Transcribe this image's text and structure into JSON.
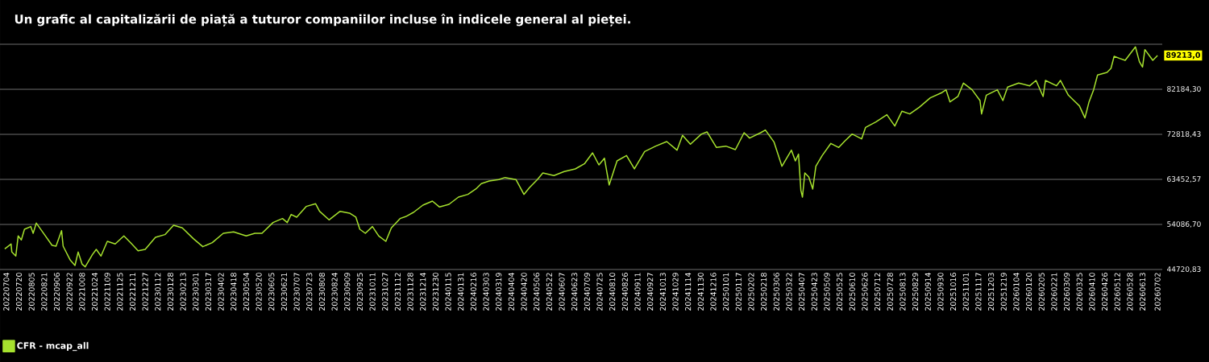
{
  "chart_data": {
    "type": "line",
    "title": "Un grafic al capitalizării de piață a tuturor companiilor incluse în indicele general al pieței.",
    "xlim": [
      "2022-06-26",
      "2026-07-08"
    ],
    "xticks": [
      {
        "value": "2022-07-04",
        "label": "20220704"
      },
      {
        "value": "2022-07-20",
        "label": "20220720"
      },
      {
        "value": "2022-08-05",
        "label": "20220805"
      },
      {
        "value": "2022-08-21",
        "label": "20220821"
      },
      {
        "value": "2022-09-06",
        "label": "20220906"
      },
      {
        "value": "2022-09-22",
        "label": "20220922"
      },
      {
        "value": "2022-10-08",
        "label": "20221008"
      },
      {
        "value": "2022-10-24",
        "label": "20221024"
      },
      {
        "value": "2022-11-09",
        "label": "20221109"
      },
      {
        "value": "2022-11-25",
        "label": "20221125"
      },
      {
        "value": "2022-12-11",
        "label": "20221211"
      },
      {
        "value": "2022-12-27",
        "label": "20221227"
      },
      {
        "value": "2023-01-12",
        "label": "20230112"
      },
      {
        "value": "2023-01-28",
        "label": "20230128"
      },
      {
        "value": "2023-02-13",
        "label": "20230213"
      },
      {
        "value": "2023-03-01",
        "label": "20230301"
      },
      {
        "value": "2023-03-17",
        "label": "20230317"
      },
      {
        "value": "2023-04-02",
        "label": "20230402"
      },
      {
        "value": "2023-04-18",
        "label": "20230418"
      },
      {
        "value": "2023-05-04",
        "label": "20230504"
      },
      {
        "value": "2023-05-20",
        "label": "20230520"
      },
      {
        "value": "2023-06-05",
        "label": "20230605"
      },
      {
        "value": "2023-06-21",
        "label": "20230621"
      },
      {
        "value": "2023-07-07",
        "label": "20230707"
      },
      {
        "value": "2023-07-23",
        "label": "20230723"
      },
      {
        "value": "2023-08-08",
        "label": "20230808"
      },
      {
        "value": "2023-08-24",
        "label": "20230824"
      },
      {
        "value": "2023-09-09",
        "label": "20230909"
      },
      {
        "value": "2023-09-25",
        "label": "20230925"
      },
      {
        "value": "2023-10-11",
        "label": "20231011"
      },
      {
        "value": "2023-10-27",
        "label": "20231027"
      },
      {
        "value": "2023-11-12",
        "label": "20231112"
      },
      {
        "value": "2023-11-28",
        "label": "20231128"
      },
      {
        "value": "2023-12-14",
        "label": "20231214"
      },
      {
        "value": "2023-12-30",
        "label": "20231230"
      },
      {
        "value": "2024-01-15",
        "label": "20240115"
      },
      {
        "value": "2024-01-31",
        "label": "20240131"
      },
      {
        "value": "2024-02-16",
        "label": "20240216"
      },
      {
        "value": "2024-03-03",
        "label": "20240303"
      },
      {
        "value": "2024-03-19",
        "label": "20240319"
      },
      {
        "value": "2024-04-04",
        "label": "20240404"
      },
      {
        "value": "2024-04-20",
        "label": "20240420"
      },
      {
        "value": "2024-05-06",
        "label": "20240506"
      },
      {
        "value": "2024-05-22",
        "label": "20240522"
      },
      {
        "value": "2024-06-07",
        "label": "20240607"
      },
      {
        "value": "2024-06-23",
        "label": "20240623"
      },
      {
        "value": "2024-07-09",
        "label": "20240709"
      },
      {
        "value": "2024-07-25",
        "label": "20240725"
      },
      {
        "value": "2024-08-10",
        "label": "20240810"
      },
      {
        "value": "2024-08-26",
        "label": "20240826"
      },
      {
        "value": "2024-09-11",
        "label": "20240911"
      },
      {
        "value": "2024-09-27",
        "label": "20240927"
      },
      {
        "value": "2024-10-13",
        "label": "20241013"
      },
      {
        "value": "2024-10-29",
        "label": "20241029"
      },
      {
        "value": "2024-11-14",
        "label": "20241114"
      },
      {
        "value": "2024-11-30",
        "label": "20241130"
      },
      {
        "value": "2024-12-16",
        "label": "20241216"
      },
      {
        "value": "2025-01-01",
        "label": "20250101"
      },
      {
        "value": "2025-01-17",
        "label": "20250117"
      },
      {
        "value": "2025-02-02",
        "label": "20250202"
      },
      {
        "value": "2025-02-18",
        "label": "20250218"
      },
      {
        "value": "2025-03-06",
        "label": "20250306"
      },
      {
        "value": "2025-03-22",
        "label": "20250322"
      },
      {
        "value": "2025-04-07",
        "label": "20250407"
      },
      {
        "value": "2025-04-23",
        "label": "20250423"
      },
      {
        "value": "2025-05-09",
        "label": "20250509"
      },
      {
        "value": "2025-05-25",
        "label": "20250525"
      },
      {
        "value": "2025-06-10",
        "label": "20250610"
      },
      {
        "value": "2025-06-26",
        "label": "20250626"
      },
      {
        "value": "2025-07-12",
        "label": "20250712"
      },
      {
        "value": "2025-07-28",
        "label": "20250728"
      },
      {
        "value": "2025-08-13",
        "label": "20250813"
      },
      {
        "value": "2025-08-29",
        "label": "20250829"
      },
      {
        "value": "2025-09-14",
        "label": "20250914"
      },
      {
        "value": "2025-09-30",
        "label": "20250930"
      },
      {
        "value": "2025-10-16",
        "label": "20251016"
      },
      {
        "value": "2025-11-01",
        "label": "20251101"
      },
      {
        "value": "2025-11-17",
        "label": "20251117"
      },
      {
        "value": "2025-12-03",
        "label": "20251203"
      },
      {
        "value": "2025-12-19",
        "label": "20251219"
      },
      {
        "value": "2026-01-04",
        "label": "20260104"
      },
      {
        "value": "2026-01-20",
        "label": "20260120"
      },
      {
        "value": "2026-02-05",
        "label": "20260205"
      },
      {
        "value": "2026-02-21",
        "label": "20260221"
      },
      {
        "value": "2026-03-09",
        "label": "20260309"
      },
      {
        "value": "2026-03-25",
        "label": "20260325"
      },
      {
        "value": "2026-04-10",
        "label": "20260410"
      },
      {
        "value": "2026-04-26",
        "label": "20260426"
      },
      {
        "value": "2026-05-12",
        "label": "20260512"
      },
      {
        "value": "2026-05-28",
        "label": "20260528"
      },
      {
        "value": "2026-06-13",
        "label": "20260613"
      },
      {
        "value": "2026-07-02",
        "label": "20260702"
      }
    ],
    "ylim": [
      44720.83,
      91550.17
    ],
    "yticks": [
      {
        "value": 44720.83,
        "label": "44720,83"
      },
      {
        "value": 54086.7,
        "label": "54086,70"
      },
      {
        "value": 63452.57,
        "label": "63452,57"
      },
      {
        "value": 72818.43,
        "label": "72818,43"
      },
      {
        "value": 82184.3,
        "label": "82184,30"
      },
      {
        "value": 91550.17,
        "label": null
      }
    ],
    "grid": "y",
    "legend": "bottom left",
    "annotations": [
      {
        "text": "89213,0",
        "x": "2026-07-02",
        "y": 89213
      }
    ],
    "x": [
      "2022-07-02",
      "2022-07-10",
      "2022-07-11",
      "2022-07-16",
      "2022-07-19",
      "2022-07-23",
      "2022-07-27",
      "2022-08-04",
      "2022-08-07",
      "2022-08-11",
      "2022-08-19",
      "2022-08-31",
      "2022-09-05",
      "2022-09-12",
      "2022-09-14",
      "2022-09-23",
      "2022-09-29",
      "2022-10-03",
      "2022-10-08",
      "2022-10-12",
      "2022-10-21",
      "2022-10-26",
      "2022-11-01",
      "2022-11-09",
      "2022-11-19",
      "2022-11-30",
      "2022-12-10",
      "2022-12-18",
      "2022-12-27",
      "2023-01-09",
      "2023-01-21",
      "2023-02-01",
      "2023-02-12",
      "2023-02-26",
      "2023-03-10",
      "2023-03-22",
      "2023-04-05",
      "2023-04-18",
      "2023-05-04",
      "2023-05-15",
      "2023-05-24",
      "2023-06-07",
      "2023-06-19",
      "2023-06-25",
      "2023-06-30",
      "2023-07-07",
      "2023-07-19",
      "2023-07-31",
      "2023-08-05",
      "2023-08-17",
      "2023-08-31",
      "2023-09-12",
      "2023-09-20",
      "2023-09-25",
      "2023-10-02",
      "2023-10-11",
      "2023-10-19",
      "2023-10-28",
      "2023-11-04",
      "2023-11-15",
      "2023-11-22",
      "2023-12-02",
      "2023-12-14",
      "2023-12-26",
      "2024-01-04",
      "2024-01-16",
      "2024-01-28",
      "2024-02-09",
      "2024-02-19",
      "2024-02-26",
      "2024-03-07",
      "2024-03-19",
      "2024-03-27",
      "2024-04-10",
      "2024-04-20",
      "2024-04-27",
      "2024-05-07",
      "2024-05-14",
      "2024-05-28",
      "2024-06-10",
      "2024-06-24",
      "2024-07-06",
      "2024-07-16",
      "2024-07-24",
      "2024-07-31",
      "2024-08-06",
      "2024-08-16",
      "2024-08-28",
      "2024-09-07",
      "2024-09-20",
      "2024-10-04",
      "2024-10-18",
      "2024-10-31",
      "2024-11-07",
      "2024-11-17",
      "2024-12-01",
      "2024-12-08",
      "2024-12-20",
      "2025-01-01",
      "2025-01-13",
      "2025-01-24",
      "2025-01-31",
      "2025-02-14",
      "2025-02-20",
      "2025-03-03",
      "2025-03-13",
      "2025-03-25",
      "2025-03-30",
      "2025-04-03",
      "2025-04-06",
      "2025-04-08",
      "2025-04-11",
      "2025-04-16",
      "2025-04-21",
      "2025-04-25",
      "2025-05-03",
      "2025-05-14",
      "2025-05-24",
      "2025-06-01",
      "2025-06-10",
      "2025-06-22",
      "2025-06-27",
      "2025-07-10",
      "2025-07-24",
      "2025-08-03",
      "2025-08-12",
      "2025-08-22",
      "2025-09-03",
      "2025-09-17",
      "2025-10-02",
      "2025-10-07",
      "2025-10-12",
      "2025-10-22",
      "2025-10-29",
      "2025-11-09",
      "2025-11-19",
      "2025-11-21",
      "2025-11-27",
      "2025-12-11",
      "2025-12-18",
      "2025-12-24",
      "2026-01-07",
      "2026-01-21",
      "2026-01-29",
      "2026-02-07",
      "2026-02-10",
      "2026-02-24",
      "2026-03-01",
      "2026-03-11",
      "2026-03-18",
      "2026-03-25",
      "2026-04-01",
      "2026-04-06",
      "2026-04-12",
      "2026-04-17",
      "2026-04-29",
      "2026-05-04",
      "2026-05-08",
      "2026-05-15",
      "2026-05-22",
      "2026-06-04",
      "2026-06-09",
      "2026-06-13",
      "2026-06-16",
      "2026-06-26",
      "2026-07-02"
    ],
    "series": [
      {
        "name": "CFR - mcap_all",
        "color": "#a6e22e",
        "values": [
          49014,
          50017,
          48345,
          47509,
          51690,
          50854,
          53084,
          53641,
          52247,
          54366,
          52526,
          49739,
          49571,
          52805,
          49571,
          46672,
          45557,
          48345,
          45836,
          45279,
          47787,
          48902,
          47509,
          50575,
          50017,
          51690,
          50017,
          48624,
          48902,
          51411,
          51969,
          53920,
          53362,
          51132,
          49460,
          50296,
          52247,
          52526,
          51690,
          52247,
          52247,
          54477,
          55314,
          54477,
          56150,
          55592,
          57822,
          58380,
          56819,
          55035,
          56819,
          56429,
          55592,
          53084,
          52247,
          53641,
          51690,
          50575,
          53362,
          55314,
          55704,
          56596,
          58101,
          58937,
          57711,
          58268,
          59774,
          60331,
          61446,
          62561,
          63119,
          63397,
          63843,
          63397,
          60331,
          61725,
          63397,
          64791,
          64234,
          65070,
          65627,
          66742,
          68972,
          66464,
          67857,
          62282,
          67300,
          68415,
          65627,
          69251,
          70366,
          71314,
          69530,
          72596,
          70756,
          72875,
          73321,
          70087,
          70366,
          69641,
          73154,
          72039,
          73154,
          73711,
          71202,
          66185,
          69530,
          67300,
          68694,
          61167,
          59774,
          64791,
          63955,
          61446,
          66185,
          68415,
          70924,
          70087,
          71481,
          72875,
          71872,
          74269,
          75384,
          76889,
          74547,
          77614,
          77056,
          78450,
          80401,
          81516,
          82074,
          79565,
          80680,
          83467,
          82074,
          79844,
          77056,
          80959,
          82074,
          79844,
          82631,
          83467,
          82910,
          84025,
          80680,
          84025,
          82910,
          84025,
          80959,
          79844,
          78729,
          76220,
          79453,
          82074,
          85140,
          85697,
          86534,
          89042,
          88596,
          88206,
          90994,
          87927,
          86812,
          90436,
          88206,
          89213
        ]
      }
    ]
  }
}
